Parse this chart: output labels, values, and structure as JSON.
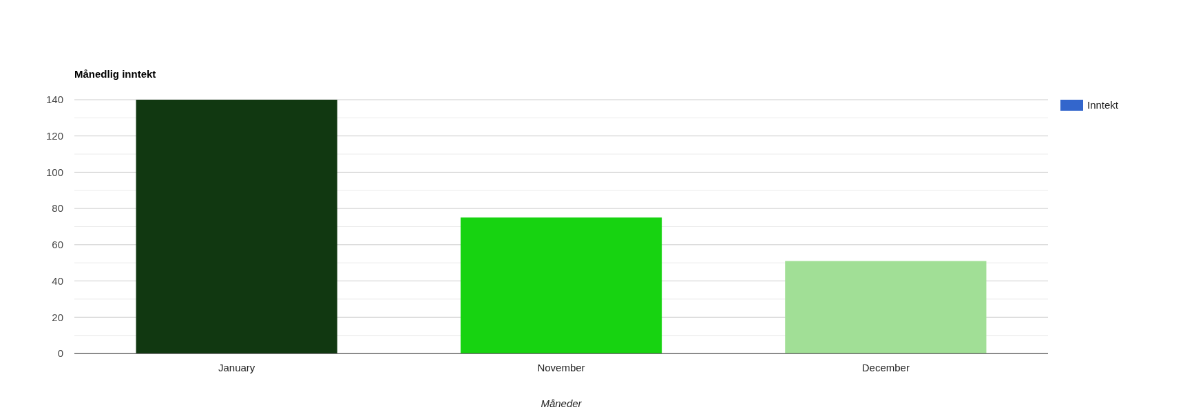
{
  "chart_data": {
    "type": "bar",
    "title": "Månedlig inntekt",
    "xlabel": "Måneder",
    "categories": [
      "January",
      "November",
      "December"
    ],
    "series": [
      {
        "name": "Inntekt",
        "color": "#3366cc",
        "colors": [
          "#113811",
          "#17d311",
          "#a1df96"
        ],
        "values": [
          140,
          75,
          51
        ]
      }
    ],
    "ylim": [
      0,
      140
    ],
    "yticks": [
      0,
      {
        "value": 10,
        "label": null
      },
      20,
      {
        "value": 30,
        "label": null
      },
      40,
      {
        "value": 50,
        "label": null
      },
      60,
      {
        "value": 70,
        "label": null
      },
      80,
      {
        "value": 90,
        "label": null
      },
      100,
      {
        "value": 110,
        "label": null
      },
      120,
      {
        "value": 130,
        "label": null
      },
      140
    ],
    "grid": true,
    "legend": "right"
  }
}
